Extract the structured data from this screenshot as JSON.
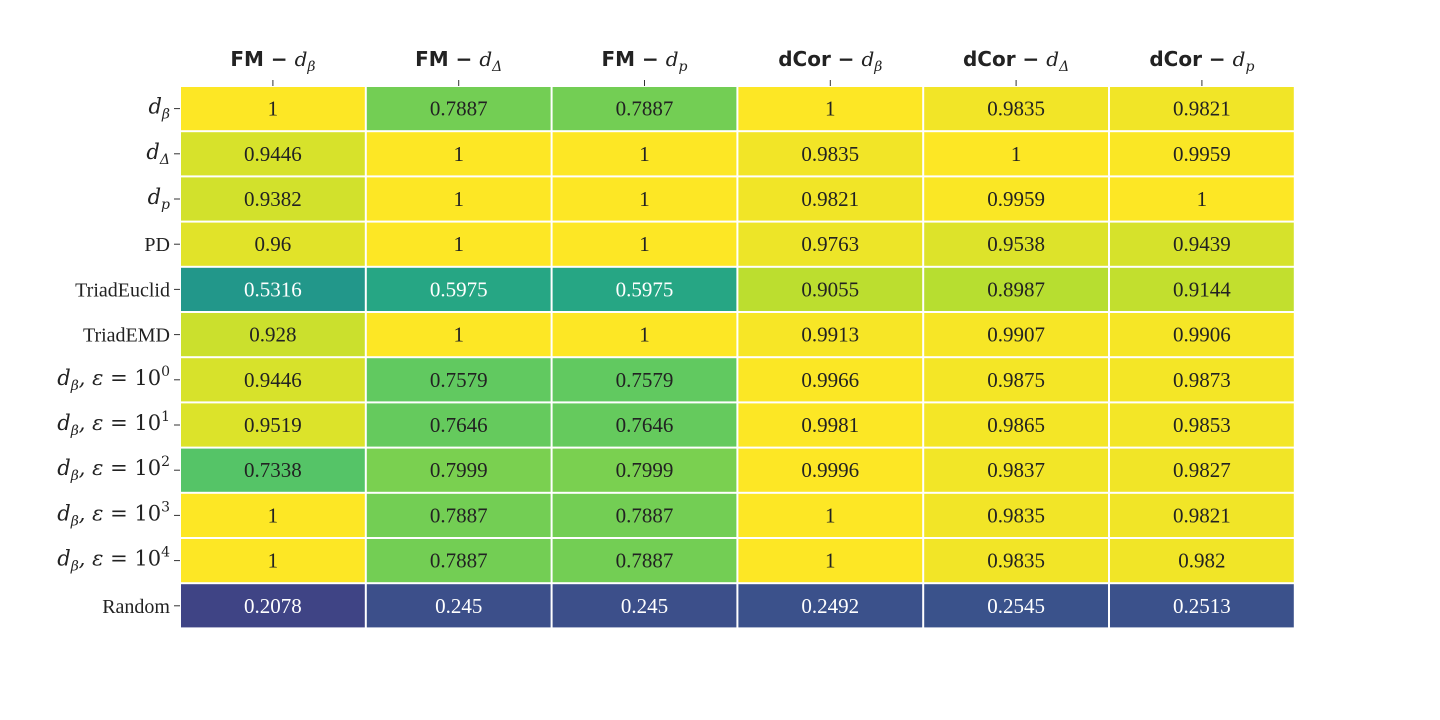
{
  "chart_data": {
    "type": "heatmap",
    "colormap": "viridis",
    "columns": [
      {
        "prefix": "FM",
        "sym": "d",
        "sub": "β"
      },
      {
        "prefix": "FM",
        "sym": "d",
        "sub": "Δ"
      },
      {
        "prefix": "FM",
        "sym": "d",
        "sub": "p"
      },
      {
        "prefix": "dCor",
        "sym": "d",
        "sub": "β"
      },
      {
        "prefix": "dCor",
        "sym": "d",
        "sub": "Δ"
      },
      {
        "prefix": "dCor",
        "sym": "d",
        "sub": "p"
      }
    ],
    "rows": [
      {
        "kind": "math",
        "sub": "β"
      },
      {
        "kind": "math",
        "sub": "Δ"
      },
      {
        "kind": "math",
        "sub": "p"
      },
      {
        "kind": "text",
        "label": "PD"
      },
      {
        "kind": "text",
        "label": "TriadEuclid"
      },
      {
        "kind": "text",
        "label": "TriadEMD"
      },
      {
        "kind": "eps",
        "sub": "β",
        "exp": "0"
      },
      {
        "kind": "eps",
        "sub": "β",
        "exp": "1"
      },
      {
        "kind": "eps",
        "sub": "β",
        "exp": "2"
      },
      {
        "kind": "eps",
        "sub": "β",
        "exp": "3"
      },
      {
        "kind": "eps",
        "sub": "β",
        "exp": "4"
      },
      {
        "kind": "text",
        "label": "Random"
      }
    ],
    "cells": [
      [
        "1",
        "0.7887",
        "0.7887",
        "1",
        "0.9835",
        "0.9821"
      ],
      [
        "0.9446",
        "1",
        "1",
        "0.9835",
        "1",
        "0.9959"
      ],
      [
        "0.9382",
        "1",
        "1",
        "0.9821",
        "0.9959",
        "1"
      ],
      [
        "0.96",
        "1",
        "1",
        "0.9763",
        "0.9538",
        "0.9439"
      ],
      [
        "0.5316",
        "0.5975",
        "0.5975",
        "0.9055",
        "0.8987",
        "0.9144"
      ],
      [
        "0.928",
        "1",
        "1",
        "0.9913",
        "0.9907",
        "0.9906"
      ],
      [
        "0.9446",
        "0.7579",
        "0.7579",
        "0.9966",
        "0.9875",
        "0.9873"
      ],
      [
        "0.9519",
        "0.7646",
        "0.7646",
        "0.9981",
        "0.9865",
        "0.9853"
      ],
      [
        "0.7338",
        "0.7999",
        "0.7999",
        "0.9996",
        "0.9837",
        "0.9827"
      ],
      [
        "1",
        "0.7887",
        "0.7887",
        "1",
        "0.9835",
        "0.9821"
      ],
      [
        "1",
        "0.7887",
        "0.7887",
        "1",
        "0.9835",
        "0.982"
      ],
      [
        "0.2078",
        "0.245",
        "0.245",
        "0.2492",
        "0.2545",
        "0.2513"
      ]
    ]
  }
}
